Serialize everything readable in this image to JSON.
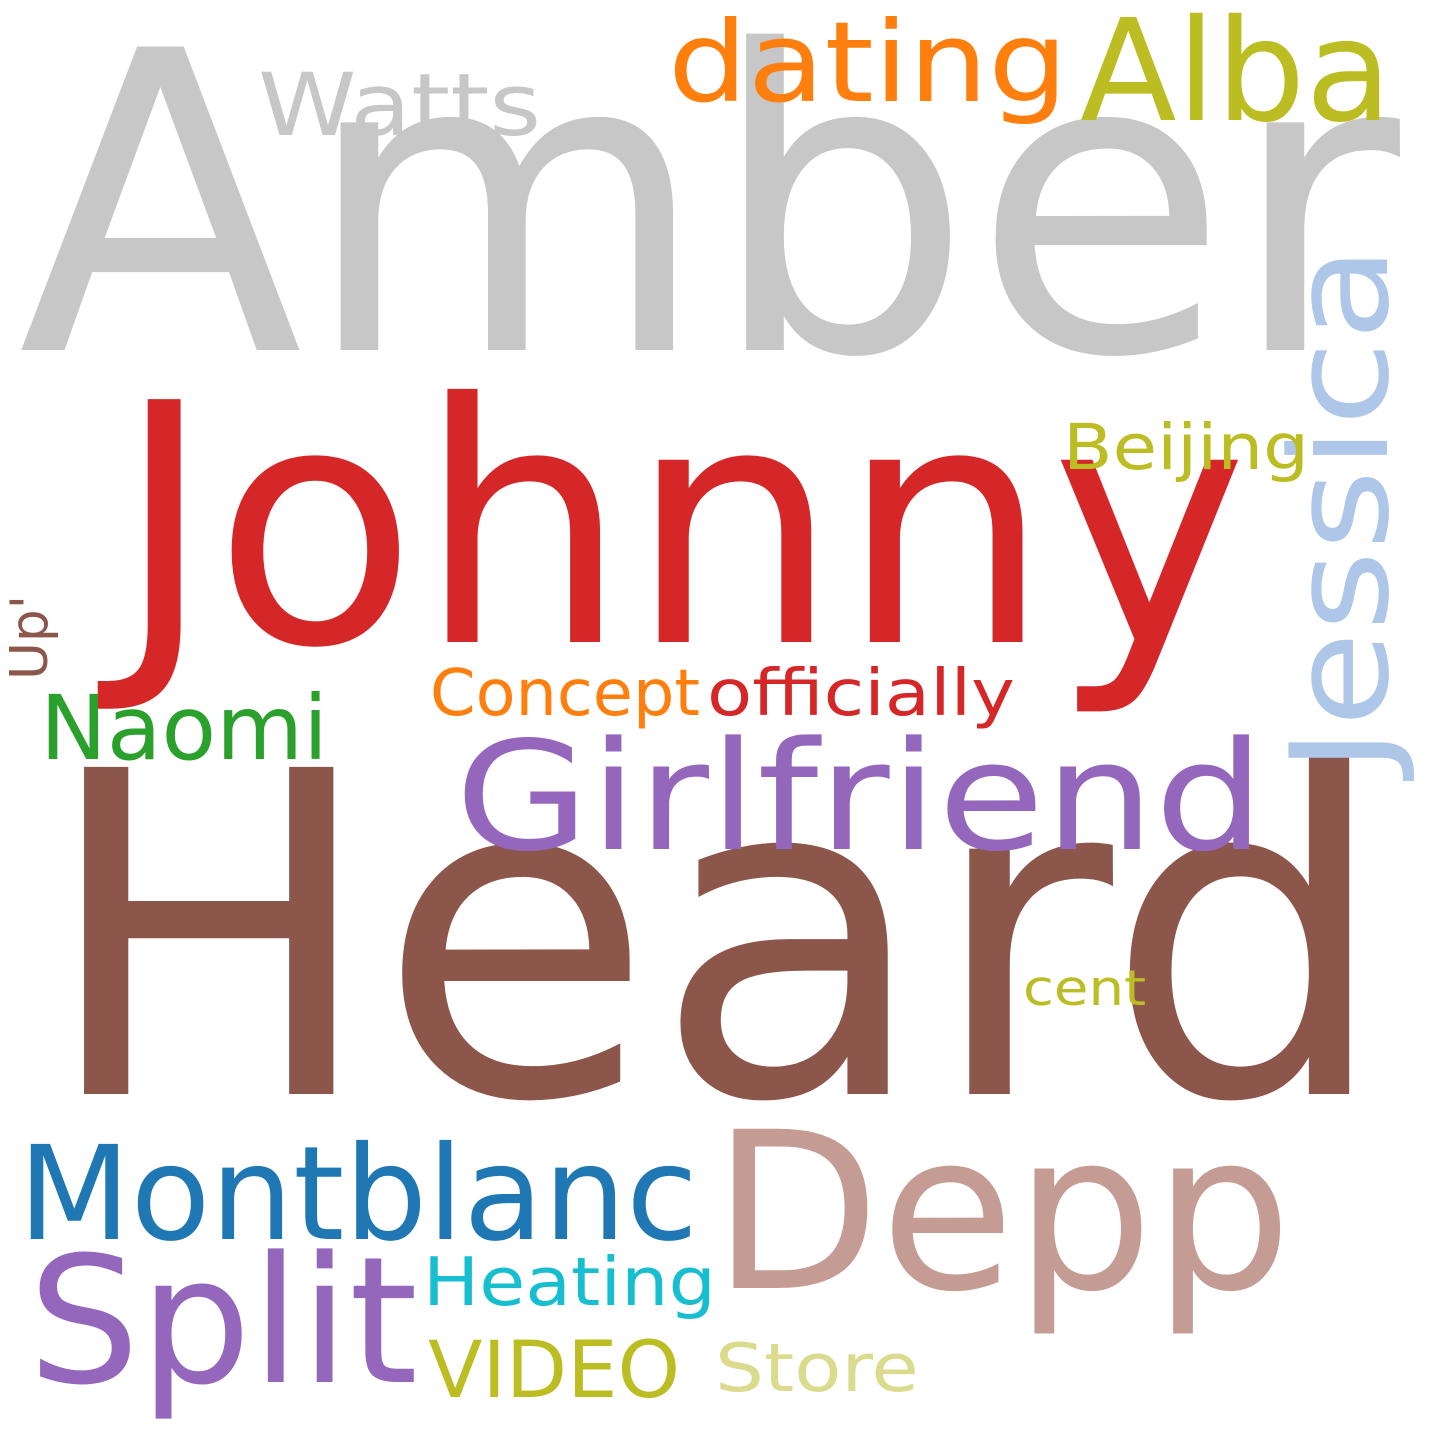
{
  "word_cloud": {
    "background": "#ffffff",
    "words": [
      {
        "key": "amber",
        "text": "Amber",
        "color": "#c7c7c7",
        "vertical": false
      },
      {
        "key": "heard",
        "text": "Heard",
        "color": "#8c564b",
        "vertical": false
      },
      {
        "key": "johnny",
        "text": "Johnny",
        "color": "#d62728",
        "vertical": false
      },
      {
        "key": "depp",
        "text": "Depp",
        "color": "#c49c94",
        "vertical": false
      },
      {
        "key": "girlfriend",
        "text": "Girlfriend",
        "color": "#9467bd",
        "vertical": false
      },
      {
        "key": "montblanc",
        "text": "Montblanc",
        "color": "#1f77b4",
        "vertical": false
      },
      {
        "key": "split",
        "text": "Split",
        "color": "#9467bd",
        "vertical": false
      },
      {
        "key": "alba",
        "text": "Alba",
        "color": "#bcbd22",
        "vertical": false
      },
      {
        "key": "dating",
        "text": "dating",
        "color": "#ff7f0e",
        "vertical": false
      },
      {
        "key": "jessica",
        "text": "Jessica",
        "color": "#aec7e8",
        "vertical": true
      },
      {
        "key": "watts",
        "text": "Watts",
        "color": "#c7c7c7",
        "vertical": false
      },
      {
        "key": "naomi",
        "text": "Naomi",
        "color": "#2ca02c",
        "vertical": false
      },
      {
        "key": "video",
        "text": "VIDEO",
        "color": "#bcbd22",
        "vertical": false
      },
      {
        "key": "store",
        "text": "Store",
        "color": "#dbdb8d",
        "vertical": false
      },
      {
        "key": "heating",
        "text": "Heating",
        "color": "#17becf",
        "vertical": false
      },
      {
        "key": "concept",
        "text": "Concept",
        "color": "#ff7f0e",
        "vertical": false
      },
      {
        "key": "officially",
        "text": "officially",
        "color": "#d62728",
        "vertical": false
      },
      {
        "key": "beijing",
        "text": "Beijing",
        "color": "#bcbd22",
        "vertical": false
      },
      {
        "key": "cent",
        "text": "cent",
        "color": "#bcbd22",
        "vertical": false
      },
      {
        "key": "up",
        "text": "Up'",
        "color": "#8c564b",
        "vertical": true
      }
    ]
  }
}
